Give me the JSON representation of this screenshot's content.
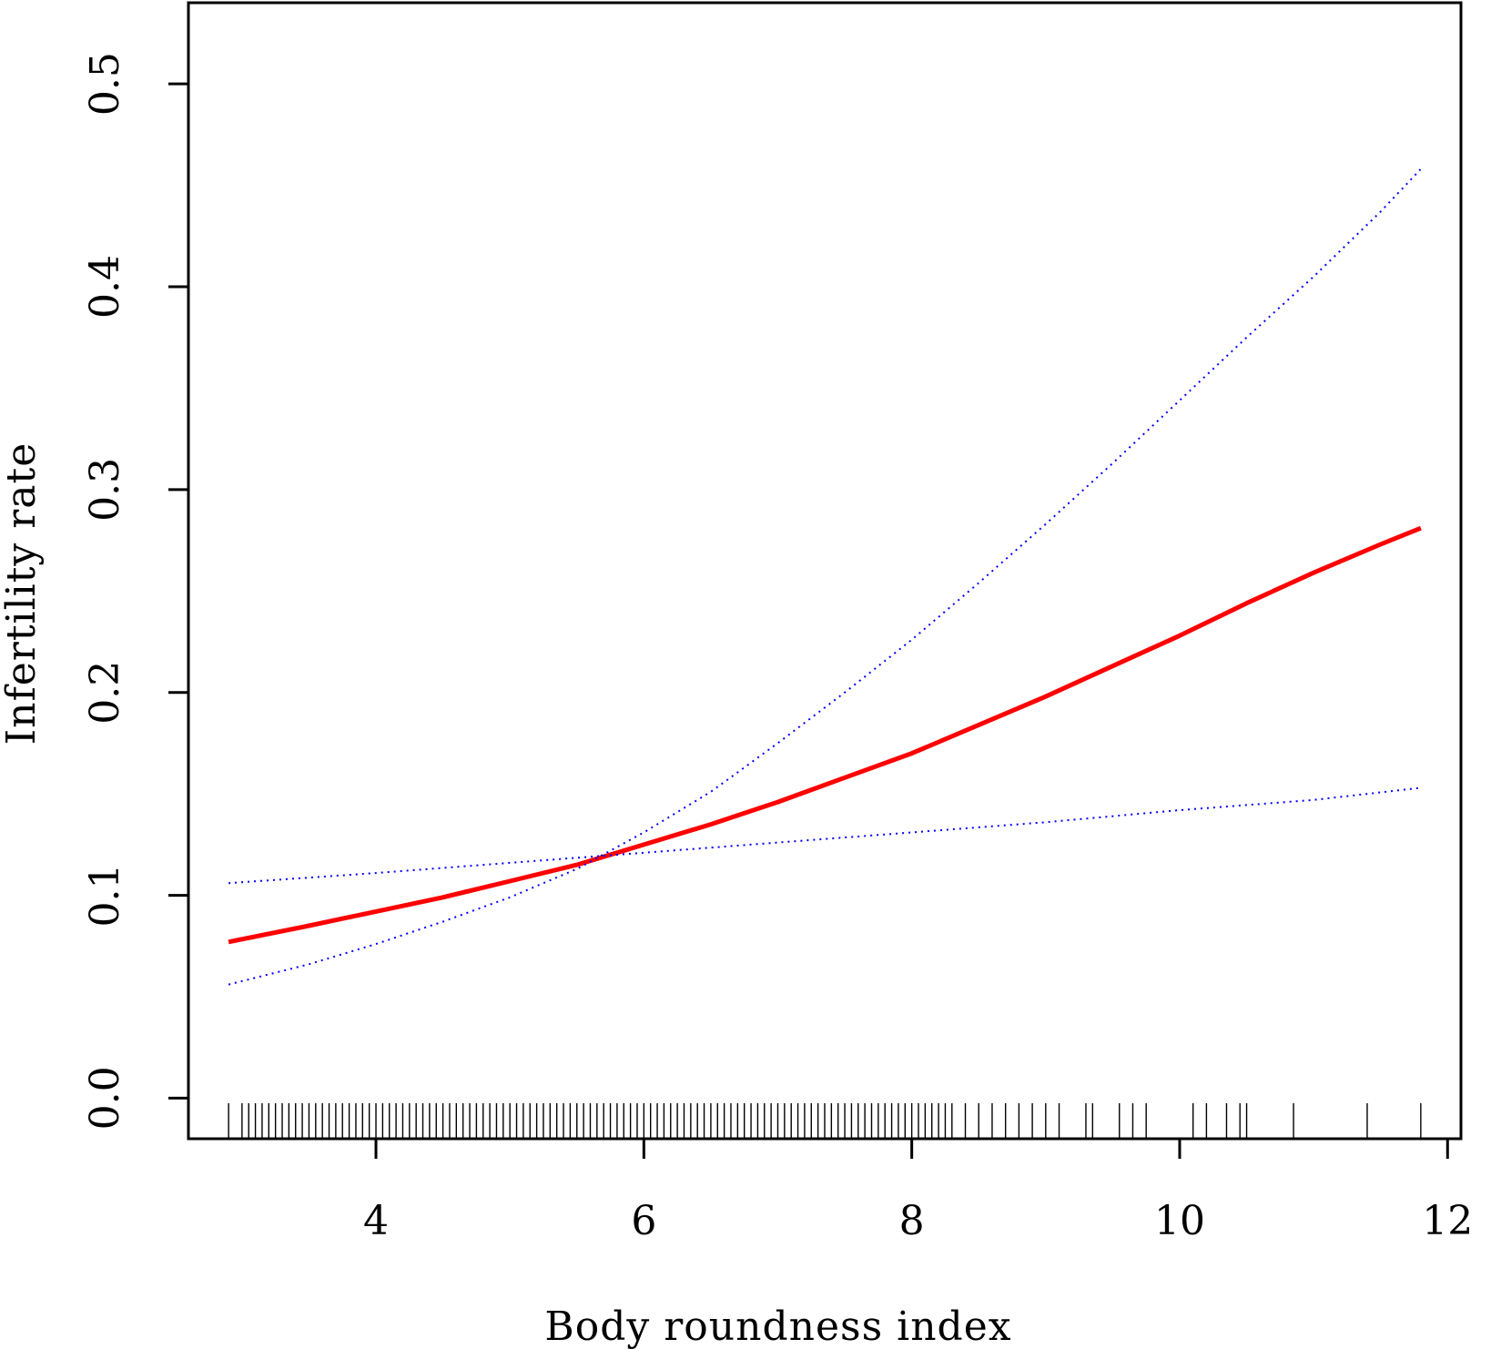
{
  "chart_data": {
    "type": "line",
    "title": "",
    "xlabel": "Body roundness index",
    "ylabel": "Infertility rate",
    "xlim": [
      2.6,
      12.1
    ],
    "ylim": [
      -0.02,
      0.54
    ],
    "x_ticks": [
      4,
      6,
      8,
      10,
      12
    ],
    "x_tick_labels": [
      "4",
      "6",
      "8",
      "10",
      "12"
    ],
    "y_ticks": [
      0.0,
      0.1,
      0.2,
      0.3,
      0.4,
      0.5
    ],
    "y_tick_labels": [
      "0.0",
      "0.1",
      "0.2",
      "0.3",
      "0.4",
      "0.5"
    ],
    "grid": false,
    "series": [
      {
        "style": "solid",
        "color": "#ff0000",
        "x": [
          2.9,
          3.5,
          4.0,
          4.5,
          5.0,
          5.5,
          6.0,
          6.5,
          7.0,
          7.5,
          8.0,
          8.5,
          9.0,
          9.5,
          10.0,
          10.5,
          11.0,
          11.5,
          11.8
        ],
        "y": [
          0.077,
          0.085,
          0.092,
          0.099,
          0.107,
          0.115,
          0.125,
          0.135,
          0.146,
          0.158,
          0.17,
          0.184,
          0.198,
          0.213,
          0.228,
          0.244,
          0.259,
          0.273,
          0.281
        ]
      },
      {
        "style": "dotted",
        "color": "#0000ff",
        "x": [
          2.9,
          3.5,
          4.0,
          4.5,
          5.0,
          5.5,
          6.0,
          6.5,
          7.0,
          7.5,
          8.0,
          8.5,
          9.0,
          9.5,
          10.0,
          10.5,
          11.0,
          11.5,
          11.8
        ],
        "y": [
          0.056,
          0.066,
          0.076,
          0.087,
          0.099,
          0.113,
          0.131,
          0.151,
          0.175,
          0.2,
          0.226,
          0.254,
          0.283,
          0.313,
          0.344,
          0.375,
          0.405,
          0.437,
          0.458
        ]
      },
      {
        "style": "dotted",
        "color": "#0000ff",
        "x": [
          2.9,
          4.0,
          5.0,
          6.0,
          7.0,
          8.0,
          9.0,
          10.0,
          11.0,
          11.8
        ],
        "y": [
          0.106,
          0.111,
          0.116,
          0.121,
          0.126,
          0.131,
          0.136,
          0.142,
          0.147,
          0.153
        ]
      }
    ],
    "rug_x": [
      2.9,
      3.0,
      3.05,
      3.1,
      3.15,
      3.2,
      3.25,
      3.3,
      3.35,
      3.4,
      3.45,
      3.5,
      3.55,
      3.6,
      3.65,
      3.7,
      3.75,
      3.8,
      3.85,
      3.9,
      3.95,
      4.0,
      4.05,
      4.1,
      4.15,
      4.2,
      4.25,
      4.3,
      4.35,
      4.4,
      4.45,
      4.5,
      4.55,
      4.6,
      4.65,
      4.7,
      4.75,
      4.8,
      4.85,
      4.9,
      4.95,
      5.0,
      5.05,
      5.1,
      5.15,
      5.2,
      5.25,
      5.3,
      5.35,
      5.4,
      5.45,
      5.5,
      5.55,
      5.6,
      5.65,
      5.7,
      5.75,
      5.8,
      5.85,
      5.9,
      5.95,
      6.0,
      6.05,
      6.1,
      6.15,
      6.2,
      6.25,
      6.3,
      6.35,
      6.4,
      6.45,
      6.5,
      6.55,
      6.6,
      6.65,
      6.7,
      6.75,
      6.8,
      6.85,
      6.9,
      6.95,
      7.0,
      7.05,
      7.1,
      7.15,
      7.2,
      7.25,
      7.3,
      7.35,
      7.4,
      7.45,
      7.5,
      7.55,
      7.6,
      7.65,
      7.7,
      7.75,
      7.8,
      7.85,
      7.9,
      7.95,
      8.0,
      8.05,
      8.1,
      8.15,
      8.2,
      8.25,
      8.3,
      8.4,
      8.5,
      8.6,
      8.7,
      8.8,
      8.9,
      9.0,
      9.1,
      9.3,
      9.35,
      9.55,
      9.65,
      9.75,
      10.1,
      10.2,
      10.35,
      10.45,
      10.5,
      10.85,
      11.4,
      11.8
    ]
  }
}
